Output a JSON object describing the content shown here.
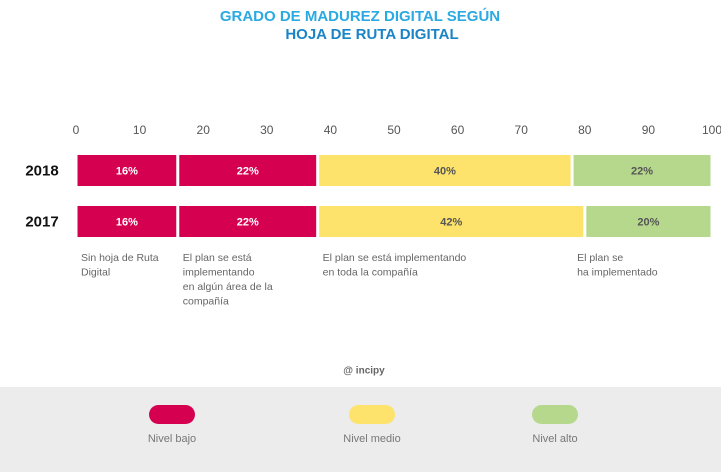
{
  "chart_data": {
    "type": "stacked-bar-horizontal",
    "title": "GRADO DE MADUREZ DIGITAL SEGÚN",
    "subtitle": "HOJA DE RUTA DIGITAL",
    "categories": [
      "2018",
      "2017"
    ],
    "xlim": [
      0,
      100
    ],
    "xticks": [
      0,
      10,
      20,
      30,
      40,
      50,
      60,
      70,
      80,
      90,
      100
    ],
    "series": [
      {
        "name": "Sin hoja de Ruta\nDigital",
        "color": "#d5004f",
        "label_color": "#ffffff",
        "values": [
          16,
          16
        ],
        "value_labels": [
          "16%",
          "16%"
        ]
      },
      {
        "name": "El plan se está\nimplementando\nen algún área de la\ncompañía",
        "color": "#d5004f",
        "label_color": "#ffffff",
        "values": [
          22,
          22
        ],
        "value_labels": [
          "22%",
          "22%"
        ]
      },
      {
        "name": "El plan se está implementando\nen toda la compañía",
        "color": "#fde26c",
        "label_color": "#555555",
        "values": [
          40,
          42
        ],
        "value_labels": [
          "40%",
          "42%"
        ]
      },
      {
        "name": "El plan se\nha implementado",
        "color": "#b6d88c",
        "label_color": "#555555",
        "values": [
          22,
          20
        ],
        "value_labels": [
          "22%",
          "20%"
        ]
      }
    ],
    "legend": [
      {
        "name": "Nivel bajo",
        "color": "#d5004f"
      },
      {
        "name": "Nivel medio",
        "color": "#fde26c"
      },
      {
        "name": "Nivel alto",
        "color": "#b6d88c"
      }
    ],
    "source": "@ incipy"
  }
}
